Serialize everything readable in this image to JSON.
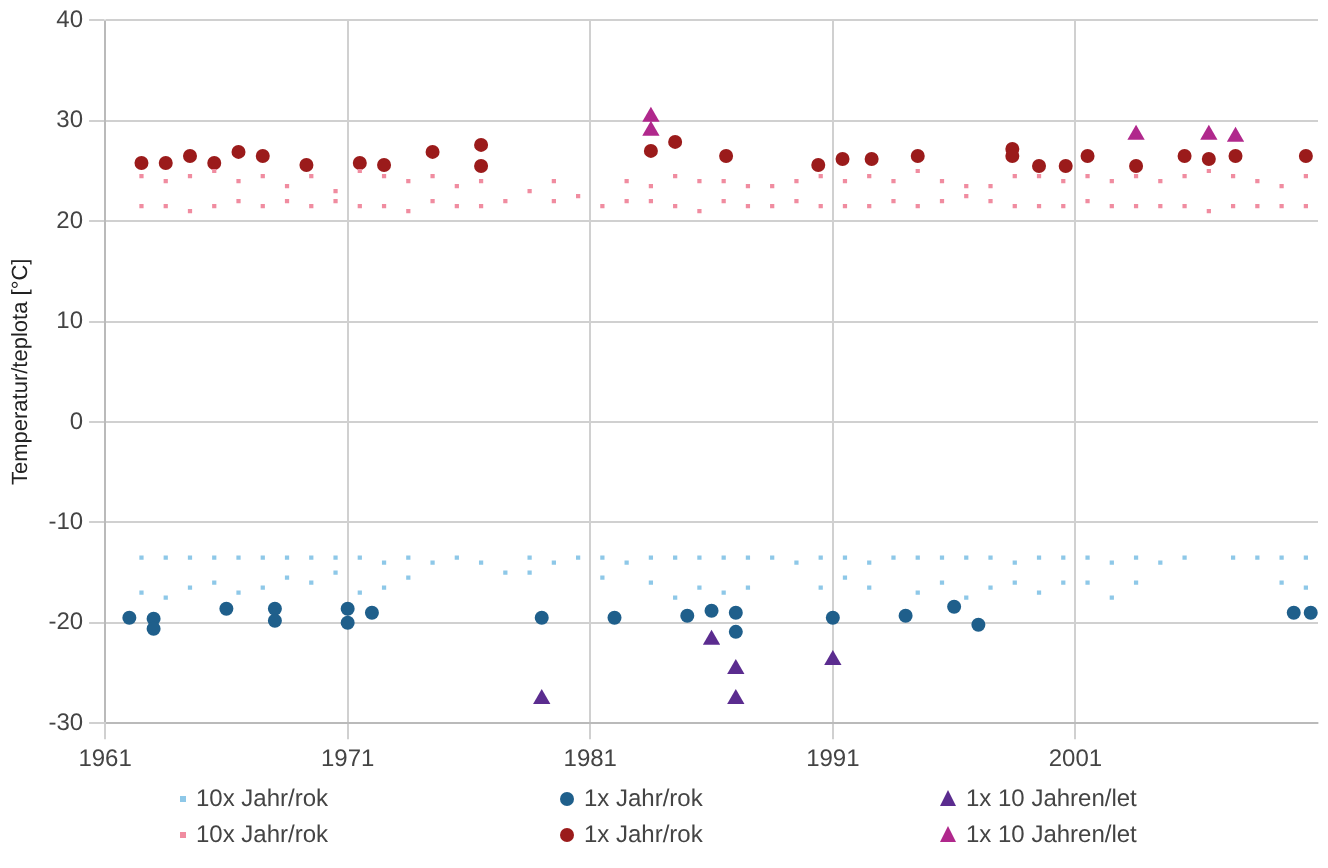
{
  "chart_data": {
    "type": "scatter",
    "ylabel": "Temperatur/teplota [°C]",
    "xlim": [
      1961,
      2011
    ],
    "xticks": [
      1961,
      1971,
      1981,
      1991,
      2001
    ],
    "ylim": [
      -30,
      40
    ],
    "yticks": [
      -30,
      -20,
      -10,
      0,
      10,
      20,
      30,
      40
    ],
    "grid": true,
    "legend": "bottom",
    "series": [
      {
        "name": "10x Jahr/rok",
        "color": "#8ec8e8",
        "marker": "square",
        "x": [
          1962.5,
          1962.5,
          1963.5,
          1963.5,
          1964.5,
          1964.5,
          1965.5,
          1965.5,
          1966.5,
          1966.5,
          1967.5,
          1967.5,
          1968.5,
          1968.5,
          1969.5,
          1969.5,
          1970.5,
          1970.5,
          1971.5,
          1971.5,
          1972.5,
          1972.5,
          1973.5,
          1973.5,
          1974.5,
          1975.5,
          1976.5,
          1977.5,
          1978.5,
          1978.5,
          1979.5,
          1980.5,
          1981.5,
          1981.5,
          1982.5,
          1983.5,
          1983.5,
          1984.5,
          1984.5,
          1985.5,
          1985.5,
          1986.5,
          1986.5,
          1987.5,
          1987.5,
          1988.5,
          1989.5,
          1990.5,
          1990.5,
          1991.5,
          1991.5,
          1992.5,
          1992.5,
          1993.5,
          1994.5,
          1994.5,
          1995.5,
          1995.5,
          1996.5,
          1996.5,
          1997.5,
          1997.5,
          1998.5,
          1998.5,
          1999.5,
          1999.5,
          2000.5,
          2000.5,
          2001.5,
          2001.5,
          2002.5,
          2002.5,
          2003.5,
          2003.5,
          2004.5,
          2005.5,
          2007.5,
          2008.5,
          2009.5,
          2009.5,
          2010.5,
          2010.5
        ],
        "values": [
          -13.5,
          -17,
          -13.5,
          -17.5,
          -13.5,
          -16.5,
          -13.5,
          -16,
          -13.5,
          -17,
          -13.5,
          -16.5,
          -13.5,
          -15.5,
          -13.5,
          -16,
          -13.5,
          -15,
          -13.5,
          -17,
          -14,
          -16.5,
          -13.5,
          -15.5,
          -14,
          -13.5,
          -14,
          -15,
          -13.5,
          -15,
          -14,
          -13.5,
          -13.5,
          -15.5,
          -14,
          -13.5,
          -16,
          -13.5,
          -17.5,
          -13.5,
          -16.5,
          -13.5,
          -17,
          -13.5,
          -16.5,
          -13.5,
          -14,
          -13.5,
          -16.5,
          -13.5,
          -15.5,
          -14,
          -16.5,
          -13.5,
          -13.5,
          -17,
          -13.5,
          -16,
          -13.5,
          -17.5,
          -13.5,
          -16.5,
          -14,
          -16,
          -13.5,
          -17,
          -13.5,
          -16,
          -13.5,
          -16,
          -14,
          -17.5,
          -13.5,
          -16,
          -14,
          -13.5,
          -13.5,
          -13.5,
          -13.5,
          -16,
          -13.5,
          -16.5
        ]
      },
      {
        "name": "1x Jahr/rok",
        "color": "#1f5f8b",
        "marker": "circle",
        "x": [
          1962,
          1963,
          1963,
          1966,
          1968,
          1968,
          1971,
          1971,
          1972,
          1979,
          1982,
          1985,
          1986,
          1987,
          1987,
          1991,
          1994,
          1996,
          1997,
          2010,
          2010.7
        ],
        "values": [
          -19.5,
          -19.6,
          -20.6,
          -18.6,
          -18.6,
          -19.8,
          -18.6,
          -20,
          -19,
          -19.5,
          -19.5,
          -19.3,
          -18.8,
          -19,
          -20.9,
          -19.5,
          -19.3,
          -18.4,
          -20.2,
          -19,
          -19
        ]
      },
      {
        "name": "1x 10 Jahren/let",
        "color": "#5b2c8f",
        "marker": "triangle",
        "x": [
          1979,
          1986,
          1987,
          1987,
          1991
        ],
        "values": [
          -27.6,
          -21.7,
          -24.6,
          -27.6,
          -23.7
        ]
      },
      {
        "name": "10x Jahr/rok",
        "color": "#f08ca0",
        "marker": "square",
        "x": [
          1962.5,
          1962.5,
          1963.5,
          1963.5,
          1964.5,
          1964.5,
          1965.5,
          1965.5,
          1966.5,
          1966.5,
          1967.5,
          1967.5,
          1968.5,
          1968.5,
          1969.5,
          1969.5,
          1970.5,
          1970.5,
          1971.5,
          1971.5,
          1972.5,
          1972.5,
          1973.5,
          1973.5,
          1974.5,
          1974.5,
          1975.5,
          1975.5,
          1976.5,
          1976.5,
          1977.5,
          1978.5,
          1979.5,
          1979.5,
          1980.5,
          1981.5,
          1982.5,
          1982.5,
          1983.5,
          1983.5,
          1984.5,
          1984.5,
          1985.5,
          1985.5,
          1986.5,
          1986.5,
          1987.5,
          1987.5,
          1988.5,
          1988.5,
          1989.5,
          1989.5,
          1990.5,
          1990.5,
          1991.5,
          1991.5,
          1992.5,
          1992.5,
          1993.5,
          1993.5,
          1994.5,
          1994.5,
          1995.5,
          1995.5,
          1996.5,
          1996.5,
          1997.5,
          1997.5,
          1998.5,
          1998.5,
          1999.5,
          1999.5,
          2000.5,
          2000.5,
          2001.5,
          2001.5,
          2002.5,
          2002.5,
          2003.5,
          2003.5,
          2004.5,
          2004.5,
          2005.5,
          2005.5,
          2006.5,
          2006.5,
          2007.5,
          2007.5,
          2008.5,
          2008.5,
          2009.5,
          2009.5,
          2010.5,
          2010.5
        ],
        "values": [
          21.5,
          24.5,
          21.5,
          24,
          21,
          24.5,
          21.5,
          25,
          22,
          24,
          21.5,
          24.5,
          22,
          23.5,
          21.5,
          24.5,
          22,
          23,
          21.5,
          25,
          21.5,
          24.5,
          21,
          24,
          22,
          24.5,
          21.5,
          23.5,
          21.5,
          24,
          22,
          23,
          22,
          24,
          22.5,
          21.5,
          22,
          24,
          22,
          23.5,
          21.5,
          24.5,
          21,
          24,
          22,
          24,
          21.5,
          23.5,
          21.5,
          23.5,
          22,
          24,
          21.5,
          24.5,
          21.5,
          24,
          21.5,
          24.5,
          22,
          24,
          21.5,
          25,
          22,
          24,
          22.5,
          23.5,
          22,
          23.5,
          21.5,
          24.5,
          21.5,
          24.5,
          21.5,
          24,
          22,
          24.5,
          21.5,
          24,
          21.5,
          24.5,
          21.5,
          24,
          21.5,
          24.5,
          21,
          25,
          21.5,
          24.5,
          21.5,
          24,
          21.5,
          23.5,
          21.5,
          24.5
        ]
      },
      {
        "name": "1x Jahr/rok",
        "color": "#9b1b1b",
        "marker": "circle",
        "x": [
          1962.5,
          1963.5,
          1964.5,
          1965.5,
          1966.5,
          1967.5,
          1969.3,
          1971.5,
          1972.5,
          1974.5,
          1976.5,
          1976.5,
          1983.5,
          1984.5,
          1986.6,
          1990.4,
          1991.4,
          1992.6,
          1994.5,
          1998.4,
          1998.4,
          1999.5,
          2000.6,
          2001.5,
          2003.5,
          2005.5,
          2006.5,
          2007.6,
          2010.5
        ],
        "values": [
          25.8,
          25.8,
          26.5,
          25.8,
          26.9,
          26.5,
          25.6,
          25.8,
          25.6,
          26.9,
          27.6,
          25.5,
          27,
          27.9,
          26.5,
          25.6,
          26.2,
          26.2,
          26.5,
          27.2,
          26.5,
          25.5,
          25.5,
          26.5,
          25.5,
          26.5,
          26.2,
          26.5,
          26.5
        ]
      },
      {
        "name": "1x 10 Jahren/let",
        "color": "#b0288c",
        "marker": "triangle",
        "x": [
          1983.5,
          1983.5,
          2003.5,
          2006.5,
          2007.6
        ],
        "values": [
          30.4,
          29,
          28.6,
          28.6,
          28.4
        ]
      }
    ]
  }
}
